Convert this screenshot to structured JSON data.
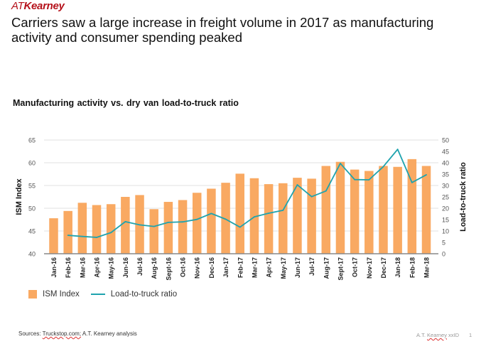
{
  "logo": {
    "prefix": "AT",
    "name": "Kearney"
  },
  "headline": "Carriers saw a large increase in freight volume in 2017 as manufacturing activity and consumer spending peaked",
  "colors": {
    "bar": "#f9a962",
    "line": "#1fa3ae",
    "grid": "#e6e6e6",
    "axis": "#888888",
    "logo": "#b5121b"
  },
  "chart_data": {
    "type": "bar",
    "title": "Manufacturing activity vs. dry van load-to-truck ratio",
    "categories": [
      "Jan-16",
      "Feb-16",
      "Mar-16",
      "Apr-16",
      "May-16",
      "Jun-16",
      "Jul-16",
      "Aug-16",
      "Sept-16",
      "Oct-16",
      "Nov-16",
      "Dec-16",
      "Jan-17",
      "Feb-17",
      "Mar-17",
      "Apr-17",
      "May-17",
      "Jun-17",
      "Jul-17",
      "Aug-17",
      "Sept-17",
      "Oct-17",
      "Nov-17",
      "Dec-17",
      "Jan-18",
      "Feb-18",
      "Mar-18"
    ],
    "series": [
      {
        "name": "ISM Index",
        "type": "bar",
        "axis": "left",
        "values": [
          47.8,
          49.4,
          51.2,
          50.7,
          50.9,
          52.5,
          52.9,
          49.8,
          51.4,
          51.8,
          53.4,
          54.3,
          55.6,
          57.6,
          56.6,
          55.3,
          55.5,
          56.7,
          56.5,
          59.3,
          60.2,
          58.5,
          58.2,
          59.3,
          59.1,
          60.8,
          59.3
        ]
      },
      {
        "name": "Load-to-truck ratio",
        "type": "line",
        "axis": "right",
        "values": [
          null,
          8.1,
          7.6,
          7.2,
          9.3,
          14.1,
          12.7,
          12.0,
          13.8,
          14.0,
          15.1,
          17.7,
          15.2,
          11.7,
          16.2,
          17.8,
          19.1,
          30.3,
          25.1,
          27.6,
          39.7,
          32.6,
          32.5,
          38.3,
          45.9,
          31.3,
          34.7
        ]
      }
    ],
    "ylabel": "ISM Index",
    "ylim": [
      40,
      65
    ],
    "yticks": [
      40,
      45,
      50,
      55,
      60,
      65
    ],
    "y2label": "Load-to-truck ratio",
    "y2lim": [
      0,
      50
    ],
    "y2ticks": [
      0,
      5,
      10,
      15,
      20,
      25,
      30,
      35,
      40,
      45,
      50
    ],
    "grid": true,
    "legend_position": "bottom-left"
  },
  "legend": {
    "bar_label": "ISM Index",
    "line_label": "Load-to-truck ratio"
  },
  "footer": {
    "sources_prefix": "Sources: ",
    "sources_link": "Truckstop.com;",
    "sources_rest": " A.T.  Kearney analysis",
    "right_prefix": "A.T. ",
    "right_name": "Kearney",
    "right_suffix": " xxID",
    "page": "1"
  }
}
